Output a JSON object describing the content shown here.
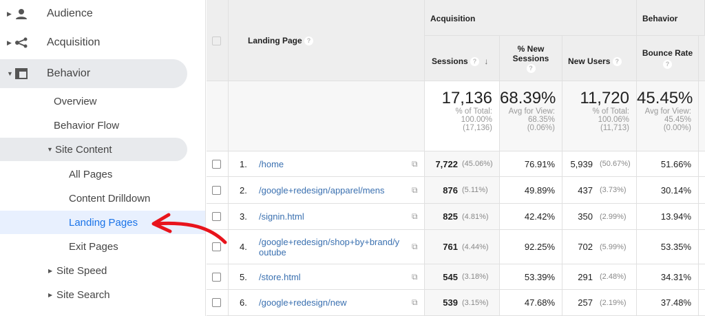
{
  "sidebar": {
    "items": [
      {
        "label": "Audience",
        "icon": "person-icon"
      },
      {
        "label": "Acquisition",
        "icon": "acquisition-icon"
      },
      {
        "label": "Behavior",
        "icon": "behavior-icon"
      }
    ],
    "behavior_children": [
      "Overview",
      "Behavior Flow"
    ],
    "site_content": "Site Content",
    "site_content_children": [
      "All Pages",
      "Content Drilldown",
      "Landing Pages",
      "Exit Pages"
    ],
    "others": [
      "Site Speed",
      "Site Search"
    ]
  },
  "table": {
    "headers": {
      "landing_page": "Landing Page",
      "acquisition": "Acquisition",
      "behavior": "Behavior",
      "sessions": "Sessions",
      "pct_new_sessions": "% New Sessions",
      "new_users": "New Users",
      "bounce_rate": "Bounce Rate"
    },
    "totals": {
      "sessions": {
        "value": "17,136",
        "l1": "% of Total:",
        "l2": "100.00%",
        "l3": "(17,136)"
      },
      "pct_new": {
        "value": "68.39%",
        "l1": "Avg for View:",
        "l2": "68.35%",
        "l3": "(0.06%)"
      },
      "new_users": {
        "value": "11,720",
        "l1": "% of Total:",
        "l2": "100.06%",
        "l3": "(11,713)"
      },
      "bounce": {
        "value": "45.45%",
        "l1": "Avg for View:",
        "l2": "45.45%",
        "l3": "(0.00%)"
      }
    },
    "rows": [
      {
        "n": "1.",
        "page": "/home",
        "sessions": "7,722",
        "sessions_pct": "(45.06%)",
        "pct_new": "76.91%",
        "new_users": "5,939",
        "new_users_pct": "(50.67%)",
        "bounce": "51.66%"
      },
      {
        "n": "2.",
        "page": "/google+redesign/apparel/mens",
        "sessions": "876",
        "sessions_pct": "(5.11%)",
        "pct_new": "49.89%",
        "new_users": "437",
        "new_users_pct": "(3.73%)",
        "bounce": "30.14%"
      },
      {
        "n": "3.",
        "page": "/signin.html",
        "sessions": "825",
        "sessions_pct": "(4.81%)",
        "pct_new": "42.42%",
        "new_users": "350",
        "new_users_pct": "(2.99%)",
        "bounce": "13.94%"
      },
      {
        "n": "4.",
        "page": "/google+redesign/shop+by+brand/youtube",
        "sessions": "761",
        "sessions_pct": "(4.44%)",
        "pct_new": "92.25%",
        "new_users": "702",
        "new_users_pct": "(5.99%)",
        "bounce": "53.35%"
      },
      {
        "n": "5.",
        "page": "/store.html",
        "sessions": "545",
        "sessions_pct": "(3.18%)",
        "pct_new": "53.39%",
        "new_users": "291",
        "new_users_pct": "(2.48%)",
        "bounce": "34.31%"
      },
      {
        "n": "6.",
        "page": "/google+redesign/new",
        "sessions": "539",
        "sessions_pct": "(3.15%)",
        "pct_new": "47.68%",
        "new_users": "257",
        "new_users_pct": "(2.19%)",
        "bounce": "37.48%"
      }
    ]
  },
  "colors": {
    "accent": "#1a73e8",
    "link": "#3a70b0",
    "arrow": "#e8141c"
  }
}
